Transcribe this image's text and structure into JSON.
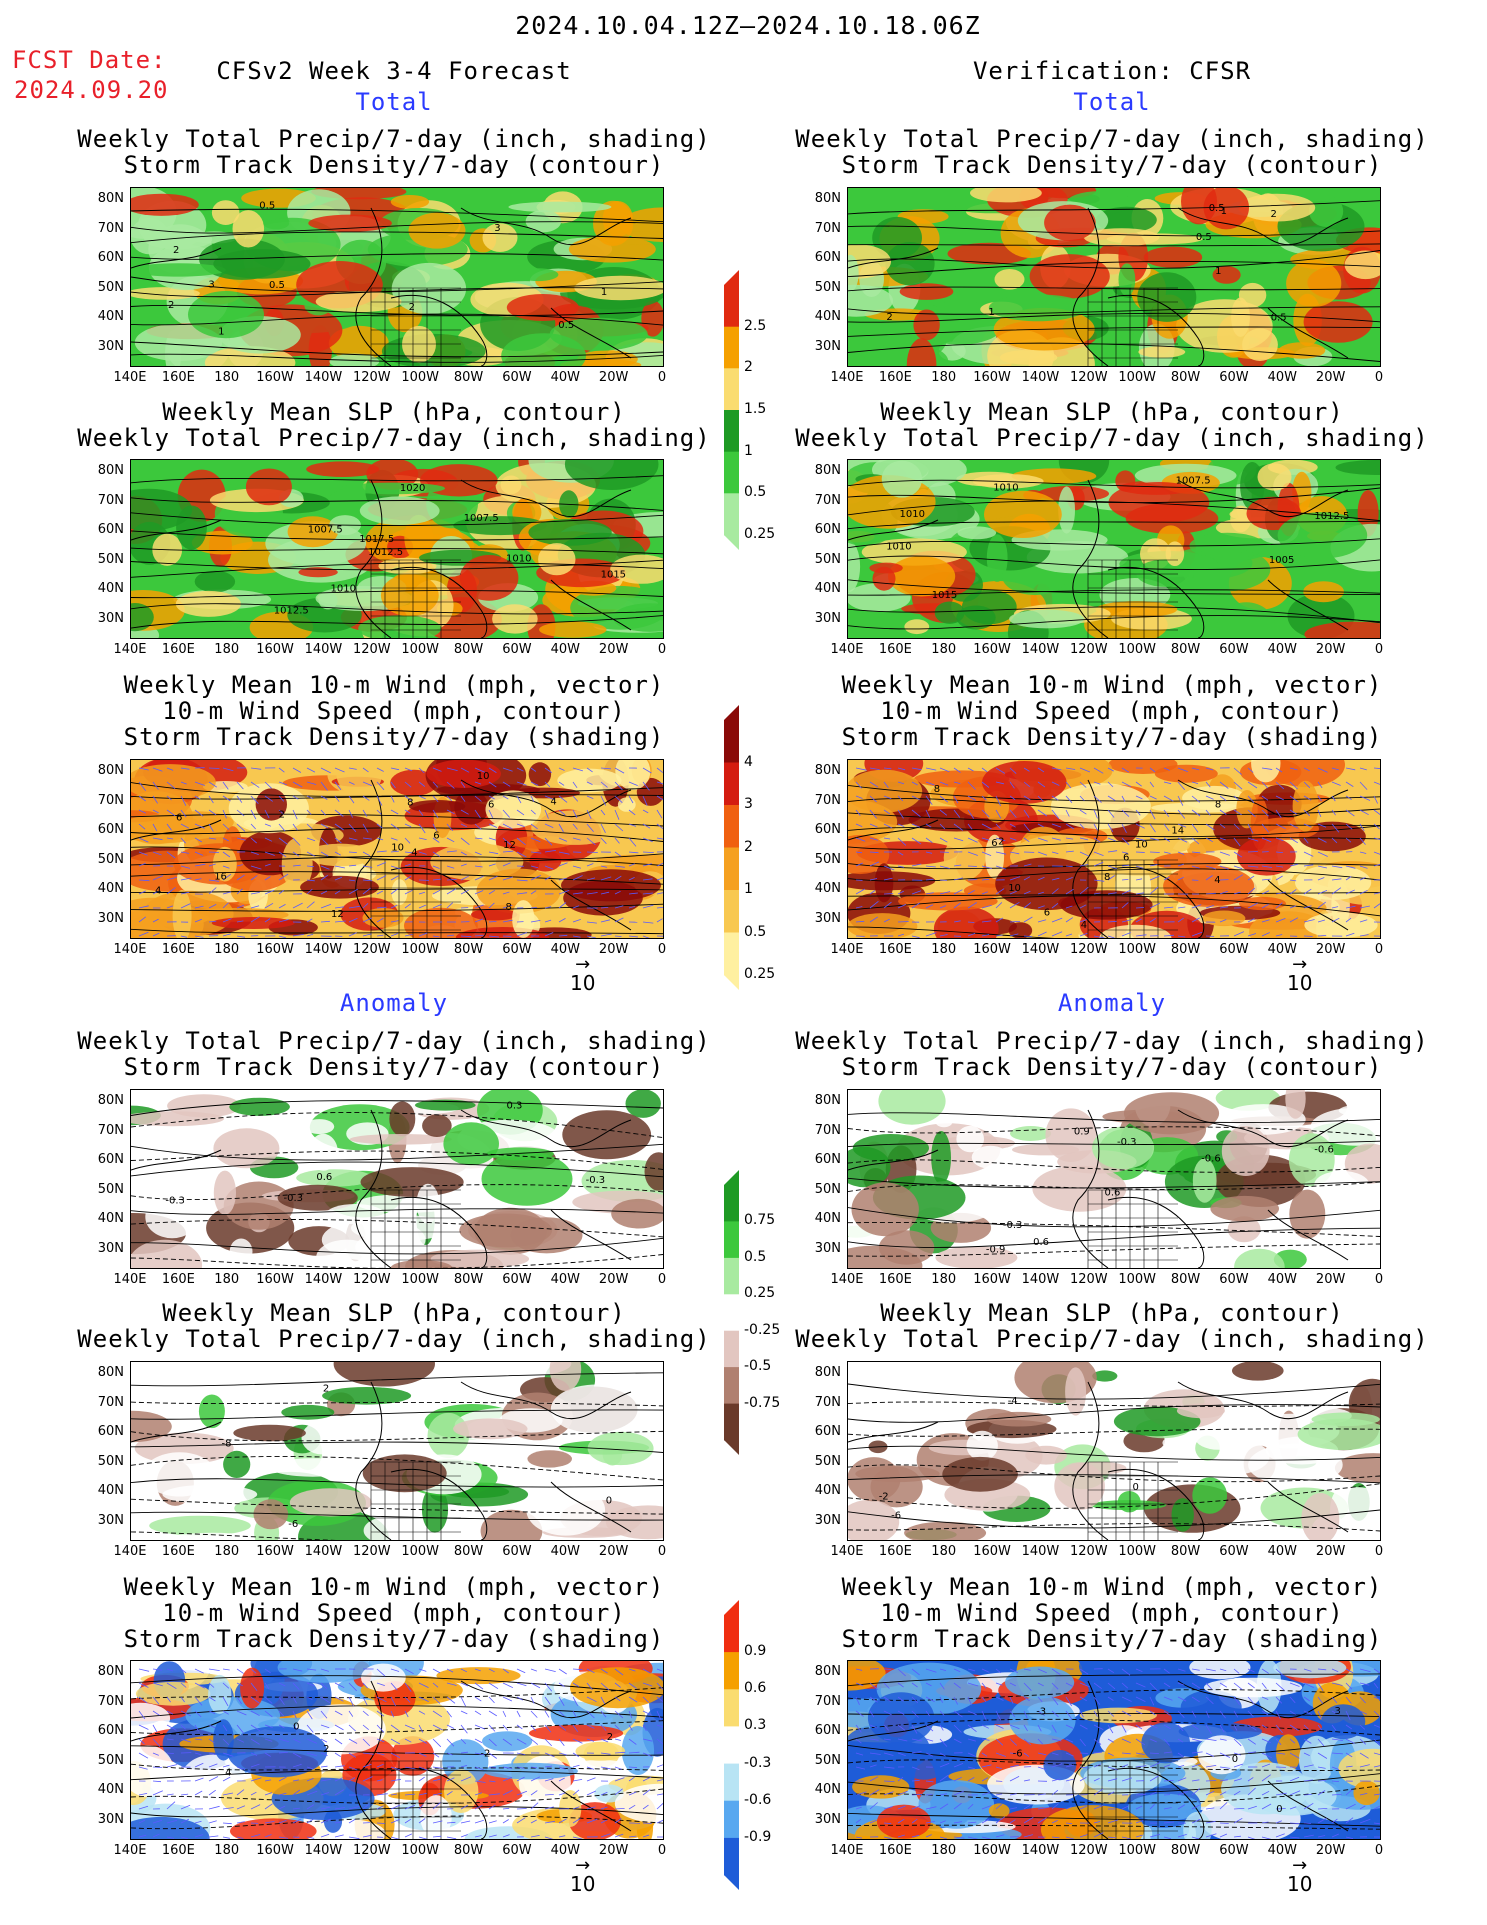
{
  "header": {
    "date_range": "2024.10.04.12Z—2024.10.18.06Z",
    "fcst_date_label": "FCST Date:",
    "fcst_date_value": "2024.09.20",
    "left_title": "CFSv2 Week 3-4 Forecast",
    "right_title": "Verification: CFSR"
  },
  "sections": {
    "total": "Total",
    "anomaly": "Anomaly"
  },
  "axes": {
    "lat_ticks": [
      "80N",
      "70N",
      "60N",
      "50N",
      "40N",
      "30N"
    ],
    "lon_ticks": [
      "140E",
      "160E",
      "180",
      "160W",
      "140W",
      "120W",
      "100W",
      "80W",
      "60W",
      "40W",
      "20W",
      "0"
    ]
  },
  "panel_titles": {
    "precip": [
      "Weekly Total Precip/7-day (inch, shading)",
      "Storm Track Density/7-day (contour)"
    ],
    "slp": [
      "Weekly Mean SLP (hPa, contour)",
      "Weekly Total Precip/7-day (inch, shading)"
    ],
    "wind": [
      "Weekly Mean 10-m Wind (mph, vector)",
      "10-m Wind Speed (mph, contour)",
      "Storm Track Density/7-day (shading)"
    ]
  },
  "vector_reference": "10",
  "colorbars": {
    "total_precip": {
      "labels": [
        "2.5",
        "2",
        "1.5",
        "1",
        "0.5",
        "0.25"
      ],
      "colors": [
        "#e02a10",
        "#f5a000",
        "#fadc70",
        "#1e9a24",
        "#3cc83c",
        "#a8eaa0"
      ]
    },
    "total_storm": {
      "labels": [
        "4",
        "3",
        "2",
        "1",
        "0.5",
        "0.25"
      ],
      "colors": [
        "#8a0a08",
        "#d41c10",
        "#f06010",
        "#f5a020",
        "#f8c850",
        "#fff0a0"
      ]
    },
    "anom_precip": {
      "labels": [
        "0.75",
        "0.5",
        "0.25",
        "-0.25",
        "-0.5",
        "-0.75"
      ],
      "colors": [
        "#1e9a24",
        "#3cc83c",
        "#a8eaa0",
        "#ffffff",
        "#e2c6c0",
        "#b08070",
        "#6a3a2a"
      ]
    },
    "anom_storm": {
      "labels": [
        "0.9",
        "0.6",
        "0.3",
        "-0.3",
        "-0.6",
        "-0.9"
      ],
      "colors": [
        "#f02e10",
        "#f5a000",
        "#fadc70",
        "#ffffff",
        "#b8e4f4",
        "#58a8f0",
        "#1e5cd8"
      ]
    }
  },
  "contour_labels": {
    "fc_precip": [
      "0.5",
      "1",
      "2",
      "3",
      "0.5",
      "1",
      "2",
      "3",
      "2",
      "0.5"
    ],
    "vf_precip": [
      "1",
      "2",
      "0.5",
      "1",
      "0.5",
      "2",
      "1",
      "0.5"
    ],
    "fc_slp": [
      "1012.5",
      "1010",
      "1010",
      "1007.5",
      "1012.5",
      "1015",
      "1017.5",
      "1007.5",
      "1020"
    ],
    "vf_slp": [
      "1010",
      "1007.5",
      "1010",
      "1012.5",
      "1010",
      "1005",
      "1015"
    ],
    "fc_wind": [
      "2",
      "4",
      "6",
      "8",
      "10",
      "12",
      "4",
      "6",
      "10",
      "12",
      "8",
      "4",
      "6",
      "16"
    ],
    "vf_wind": [
      "2",
      "4",
      "6",
      "8",
      "10",
      "14",
      "6",
      "10",
      "8",
      "6",
      "8",
      "4"
    ],
    "fc_anom_precip": [
      "-0.3",
      "0.6",
      "-0.3",
      "0.3",
      "-0.3"
    ],
    "vf_anom_precip": [
      "-0.3",
      "-0.9",
      "-0.6",
      "0.6",
      "-0.3",
      "0.9",
      "-0.6",
      "0.6"
    ],
    "fc_anom_slp": [
      "-6",
      "-8",
      "2",
      "0"
    ],
    "vf_anom_slp": [
      "-4",
      "-6",
      "-2",
      "0"
    ],
    "fc_anom_wind": [
      "0",
      "2",
      "-2",
      "4",
      "2"
    ],
    "vf_anom_wind": [
      "-6",
      "0",
      "-3",
      "0",
      "3"
    ]
  }
}
